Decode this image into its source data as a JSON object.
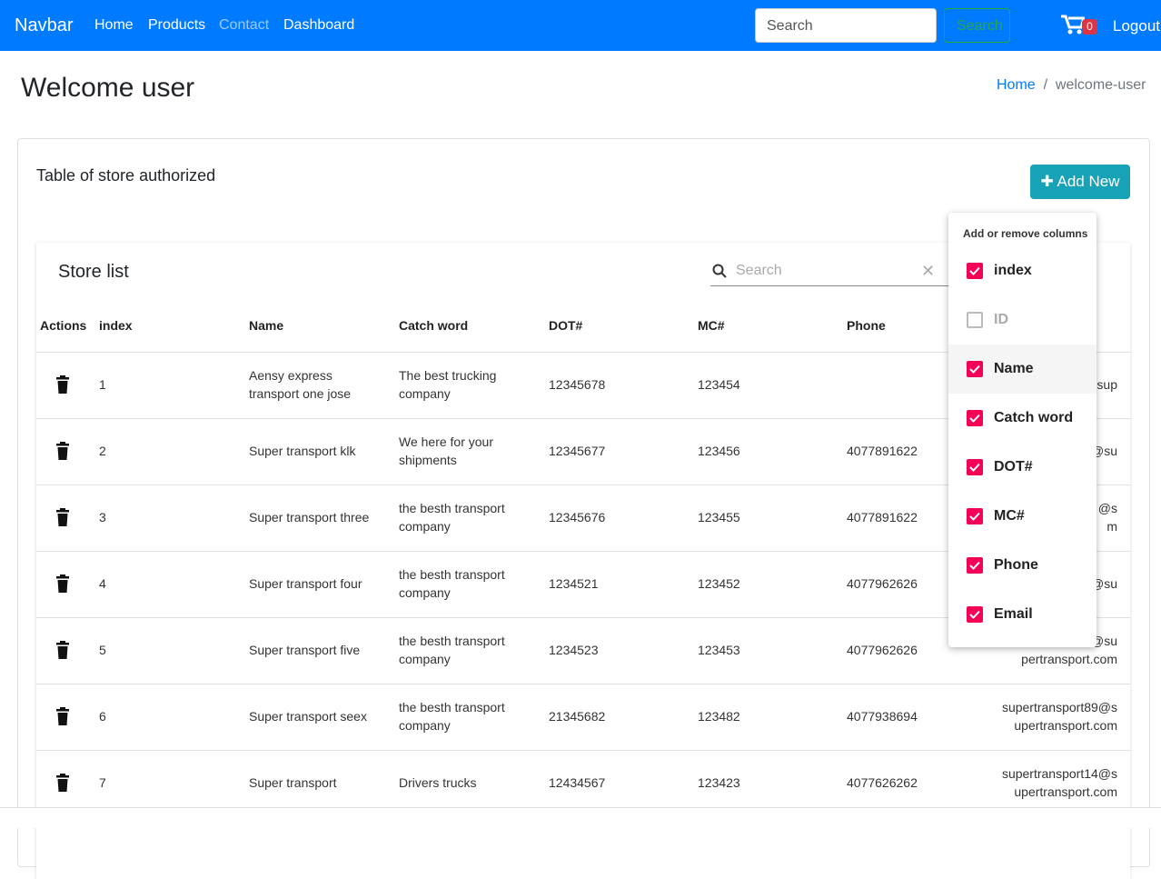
{
  "navbar": {
    "brand": "Navbar",
    "links": [
      "Home",
      "Products",
      "Contact",
      "Dashboard"
    ],
    "active_link": 2,
    "search_placeholder": "Search",
    "search_button": "Search",
    "cart_count": "0",
    "logout": "Logout"
  },
  "page": {
    "title": "Welcome user",
    "breadcrumb": [
      "Home",
      "welcome-user"
    ]
  },
  "card": {
    "title": "Table of store authorized",
    "add_button": "Add New"
  },
  "table": {
    "title": "Store list",
    "search_placeholder": "Search",
    "headers": [
      "Actions",
      "index",
      "Name",
      "Catch word",
      "DOT#",
      "MC#",
      "Phone"
    ],
    "rows": [
      [
        "1",
        "Aensy express transport one jose",
        "The best trucking company",
        "12345678",
        "123454",
        null,
        [
          "sup"
        ]
      ],
      [
        "2",
        "Super transport klk",
        "We here for your shipments",
        "12345677",
        "123456",
        "4077891622",
        [
          "@su"
        ]
      ],
      [
        "3",
        "Super transport three",
        "the besth transport company",
        "12345676",
        "123455",
        "4077891622",
        [
          "@s",
          "m"
        ]
      ],
      [
        "4",
        "Super transport four",
        "the besth transport company",
        "1234521",
        "123452",
        "4077962626",
        [
          "@su"
        ]
      ],
      [
        "5",
        "Super transport five",
        "the besth transport company",
        "1234523",
        "123453",
        "4077962626",
        [
          "@su",
          "pertransport.com"
        ]
      ],
      [
        "6",
        "Super transport seex",
        "the besth transport company",
        "21345682",
        "123482",
        "4077938694",
        [
          "supertransport89@s",
          "upertransport.com"
        ]
      ],
      [
        "7",
        "Super transport",
        "Drivers trucks",
        "12434567",
        "123423",
        "4077626262",
        [
          "supertransport14@s",
          "upertransport.com"
        ]
      ]
    ]
  },
  "column_menu": {
    "title": "Add or remove columns",
    "highlighted": 2,
    "items": [
      {
        "label": "index",
        "checked": true
      },
      {
        "label": "ID",
        "checked": false
      },
      {
        "label": "Name",
        "checked": true
      },
      {
        "label": "Catch word",
        "checked": true
      },
      {
        "label": "DOT#",
        "checked": true
      },
      {
        "label": "MC#",
        "checked": true
      },
      {
        "label": "Phone",
        "checked": true
      },
      {
        "label": "Email",
        "checked": true
      }
    ]
  }
}
